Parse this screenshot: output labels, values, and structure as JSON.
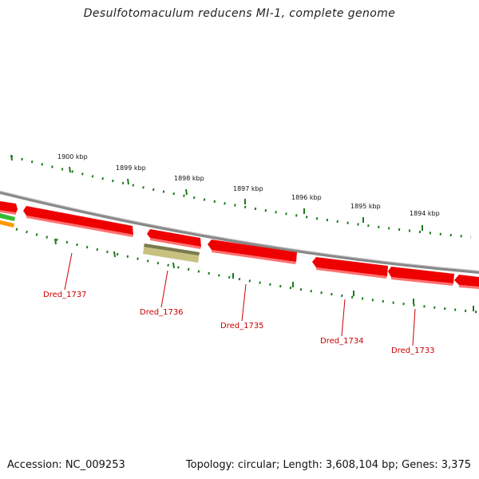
{
  "title": "Desulfotomaculum reducens MI-1, complete genome",
  "footer": {
    "accession": "Accession: NC_009253",
    "topology": "Topology: circular; Length: 3,608,104 bp; Genes: 3,375"
  },
  "scale_labels": [
    "1900 kbp",
    "1899 kbp",
    "1898 kbp",
    "1897 kbp",
    "1896 kbp",
    "1895 kbp",
    "1894 kbp"
  ],
  "gene_labels": [
    "Dred_1737",
    "Dred_1736",
    "Dred_1735",
    "Dred_1734",
    "Dred_1733"
  ],
  "colors": {
    "backbone": "#888888",
    "gene_fill": "#ee0000",
    "gene_highlight": "#ff7070",
    "pseudo_fill": "#c8c080",
    "pseudo_top": "#7a7a50",
    "tick": "#1d7a1d",
    "label": "#cc0000",
    "edge_green": "#33bb33",
    "edge_orange": "#ff9900"
  }
}
